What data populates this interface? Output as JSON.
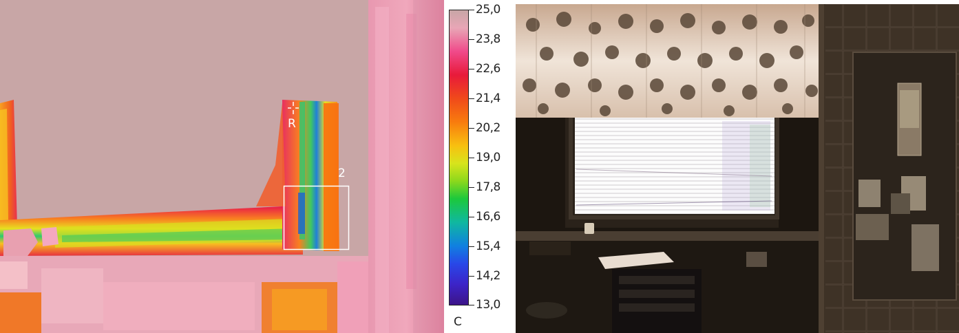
{
  "thermal_image": {
    "markers": {
      "spot_label": "R",
      "box_label": "2"
    }
  },
  "color_scale": {
    "ticks": [
      "25,0",
      "23,8",
      "22,6",
      "21,4",
      "20,2",
      "19,0",
      "17,8",
      "16,6",
      "15,4",
      "14,2",
      "13,0"
    ],
    "unit": "C",
    "range_min": 13.0,
    "range_max": 25.0
  },
  "colors": {
    "background_warm": "#c8a6a6",
    "hot": "#e8204a",
    "cold": "#3c1488"
  }
}
